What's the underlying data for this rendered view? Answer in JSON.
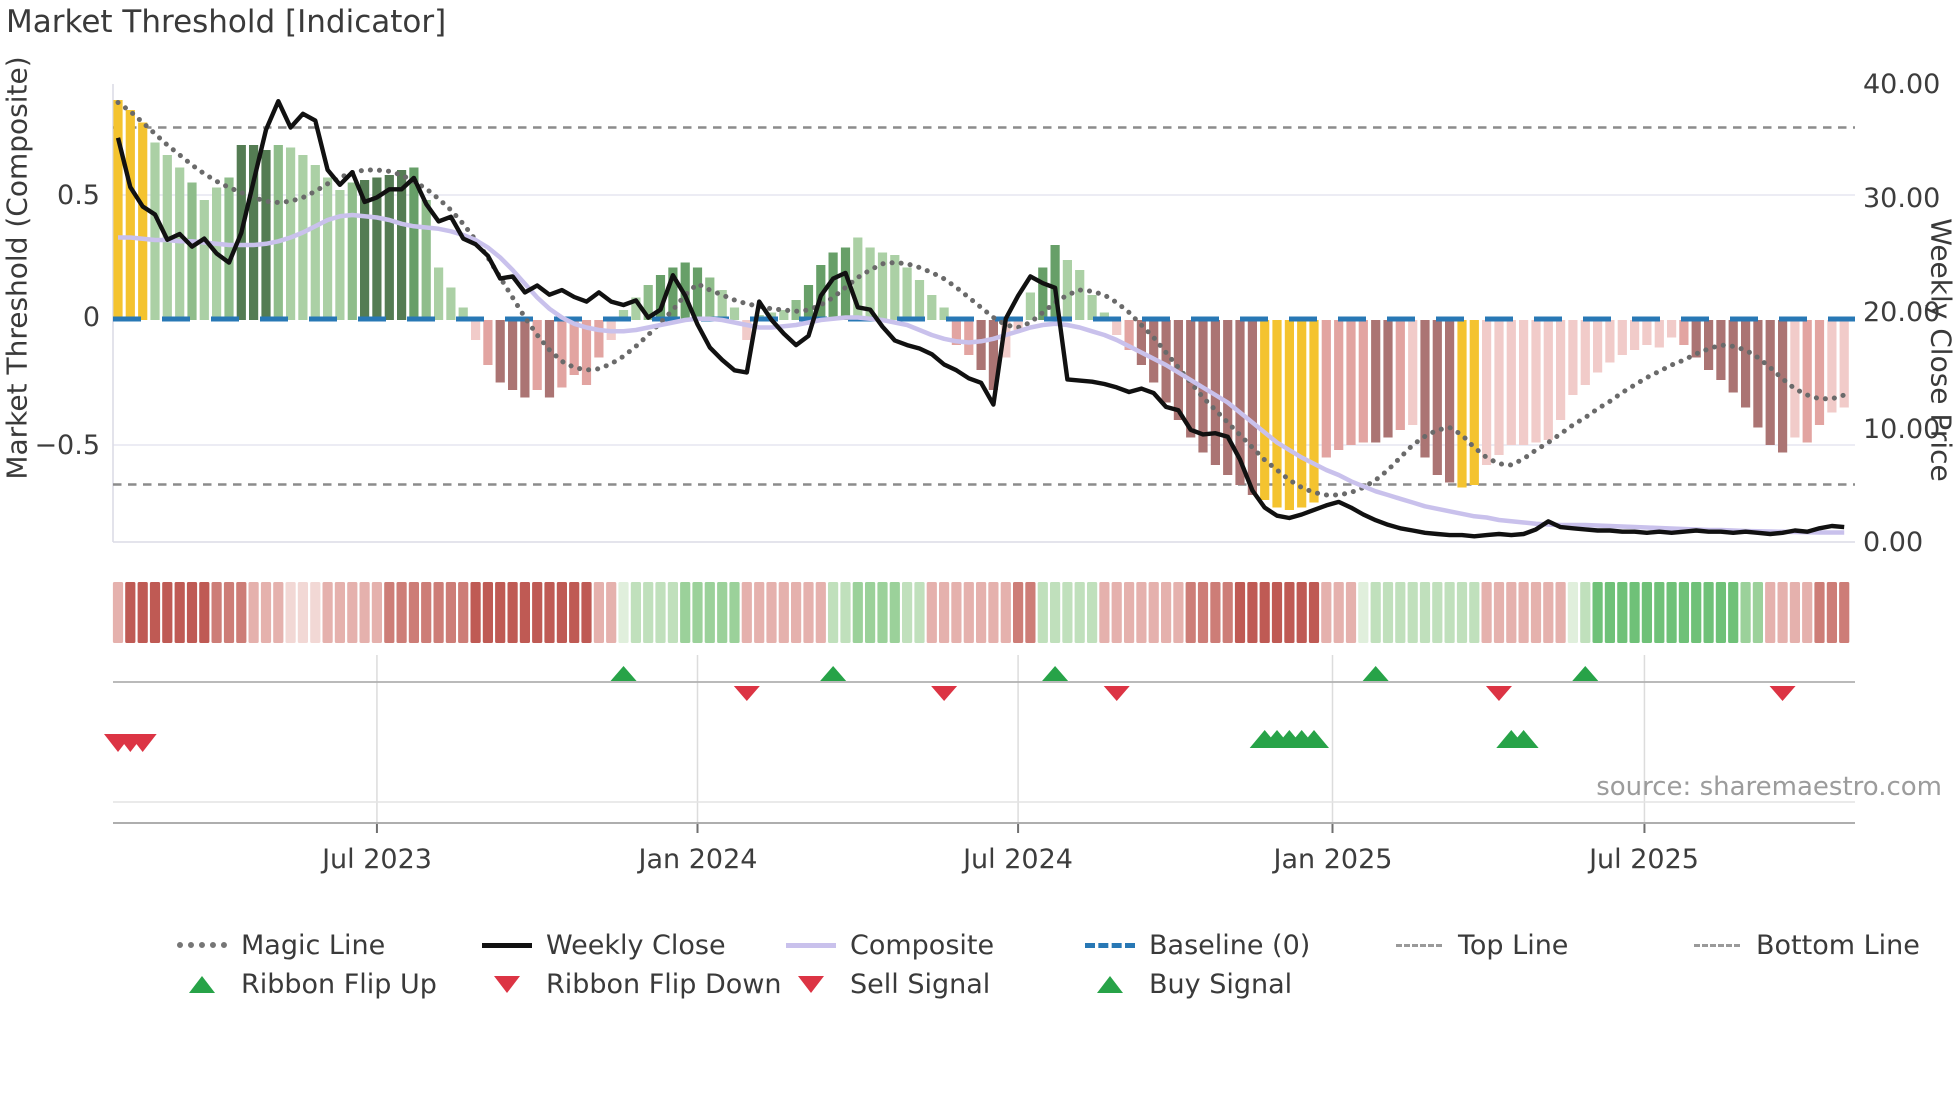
{
  "title": "Market Threshold [Indicator]",
  "source": "source: sharemaestro.com",
  "axes": {
    "left_label": "Market Threshold (Composite)",
    "right_label": "Weekly Close Price",
    "left_tick_labels": [
      "0.5",
      "0",
      "−0.5"
    ],
    "right_tick_labels": [
      "40.00",
      "30.00",
      "20.00",
      "10.00",
      "0.00"
    ],
    "x_tick_labels": [
      "Jul 2023",
      "Jan 2024",
      "Jul 2024",
      "Jan 2025",
      "Jul 2025"
    ]
  },
  "legend": {
    "magic_line": "Magic Line",
    "weekly_close": "Weekly Close",
    "composite": "Composite",
    "baseline": "Baseline (0)",
    "top_line": "Top Line",
    "bottom_line": "Bottom Line",
    "ribbon_flip_up": "Ribbon Flip Up",
    "ribbon_flip_down": "Ribbon Flip Down",
    "sell_signal": "Sell Signal",
    "buy_signal": "Buy Signal"
  },
  "colors": {
    "bars": {
      "au": "#f4c32f",
      "g1": "#abd0a5",
      "g2": "#8fbd8b",
      "g3": "#679f68",
      "g4": "#547c53",
      "p1": "#f1cbc9",
      "p2": "#e2a4a1",
      "p3": "#ab7473"
    },
    "ribbon": {
      "R3": "#bf5a54",
      "R2": "#cd7d77",
      "R1": "#e5b1ad",
      "R0": "#f2d8d5",
      "G0": "#e0efdc",
      "G1": "#c0e0bc",
      "G2": "#9bd19a",
      "G3": "#6fc178"
    },
    "weekly_close": "#111111",
    "composite": "#c9c1ec",
    "magic_line": "#6a6a6a",
    "baseline": "#2878b5",
    "reference": "#8c8c8c",
    "signal_green": "#27a348",
    "signal_red": "#dc3444",
    "grid": "#ececf4"
  },
  "chart_data": {
    "type": "combo",
    "title": "Market Threshold [Indicator]",
    "frequency": "weekly",
    "weeks": 141,
    "x_tick_labels": [
      "Jul 2023",
      "Jan 2024",
      "Jul 2024",
      "Jan 2025",
      "Jul 2025"
    ],
    "x_tick_weeks": [
      21,
      47,
      73,
      98.5,
      123.8
    ],
    "left_axis": {
      "label": "Market Threshold (Composite)",
      "ticks": [
        0.5,
        0,
        -0.5
      ],
      "range": [
        -0.89,
        0.94
      ],
      "grid": true
    },
    "right_axis": {
      "label": "Weekly Close Price",
      "ticks": [
        40,
        30,
        20,
        10,
        0
      ],
      "range": [
        0,
        40.2
      ]
    },
    "reference_lines": {
      "top_line": 0.77,
      "baseline": 0,
      "bottom_line": -0.67
    },
    "bars": {
      "name": "Market Threshold (Composite) histogram",
      "values": [
        0.88,
        0.84,
        0.79,
        0.71,
        0.66,
        0.61,
        0.55,
        0.48,
        0.53,
        0.57,
        0.7,
        0.7,
        0.68,
        0.7,
        0.69,
        0.66,
        0.62,
        0.57,
        0.52,
        0.55,
        0.56,
        0.57,
        0.58,
        0.6,
        0.61,
        0.48,
        0.21,
        0.13,
        0.05,
        -0.08,
        -0.18,
        -0.25,
        -0.28,
        -0.31,
        -0.28,
        -0.31,
        -0.27,
        -0.22,
        -0.26,
        -0.15,
        -0.08,
        0.04,
        0.09,
        0.14,
        0.18,
        0.21,
        0.23,
        0.21,
        0.17,
        0.12,
        0.05,
        -0.08,
        0.02,
        0.03,
        0.04,
        0.08,
        0.14,
        0.22,
        0.27,
        0.29,
        0.33,
        0.29,
        0.27,
        0.26,
        0.21,
        0.16,
        0.1,
        0.05,
        -0.1,
        -0.14,
        -0.2,
        -0.28,
        -0.15,
        -0.04,
        0.11,
        0.21,
        0.3,
        0.24,
        0.2,
        0.1,
        0.03,
        -0.06,
        -0.12,
        -0.18,
        -0.25,
        -0.33,
        -0.4,
        -0.47,
        -0.53,
        -0.58,
        -0.62,
        -0.66,
        -0.7,
        -0.72,
        -0.75,
        -0.76,
        -0.75,
        -0.73,
        -0.55,
        -0.52,
        -0.5,
        -0.49,
        -0.49,
        -0.47,
        -0.44,
        -0.42,
        -0.55,
        -0.62,
        -0.65,
        -0.67,
        -0.66,
        -0.58,
        -0.54,
        -0.5,
        -0.5,
        -0.49,
        -0.48,
        -0.4,
        -0.3,
        -0.26,
        -0.21,
        -0.17,
        -0.14,
        -0.12,
        -0.1,
        -0.11,
        -0.07,
        -0.1,
        -0.15,
        -0.2,
        -0.24,
        -0.29,
        -0.35,
        -0.43,
        -0.5,
        -0.53,
        -0.47,
        -0.49,
        -0.42,
        -0.37,
        -0.35
      ],
      "colors": [
        "au",
        "au",
        "au",
        "g1",
        "g1",
        "g1",
        "g2",
        "g1",
        "g1",
        "g2",
        "g4",
        "g4",
        "g4",
        "g2",
        "g1",
        "g1",
        "g1",
        "g1",
        "g1",
        "g2",
        "g4",
        "g4",
        "g4",
        "g4",
        "g3",
        "g2",
        "g1",
        "g1",
        "g1",
        "p1",
        "p2",
        "p3",
        "p3",
        "p3",
        "p2",
        "p3",
        "p2",
        "p2",
        "p2",
        "p2",
        "p1",
        "g1",
        "g1",
        "g2",
        "g3",
        "g3",
        "g3",
        "g3",
        "g2",
        "g1",
        "g1",
        "p1",
        "g1",
        "g1",
        "g1",
        "g2",
        "g3",
        "g3",
        "g3",
        "g3",
        "g1",
        "g1",
        "g1",
        "g1",
        "g1",
        "g1",
        "g1",
        "g1",
        "p2",
        "p2",
        "p3",
        "p3",
        "p1",
        "p1",
        "g1",
        "g3",
        "g3",
        "g1",
        "g1",
        "g1",
        "g1",
        "p1",
        "p2",
        "p3",
        "p3",
        "p3",
        "p3",
        "p3",
        "p3",
        "p3",
        "p3",
        "p3",
        "p3",
        "au",
        "au",
        "au",
        "au",
        "au",
        "p2",
        "p2",
        "p2",
        "p2",
        "p3",
        "p3",
        "p2",
        "p1",
        "p3",
        "p3",
        "p3",
        "au",
        "au",
        "p1",
        "p1",
        "p1",
        "p1",
        "p1",
        "p1",
        "p1",
        "p1",
        "p1",
        "p1",
        "p1",
        "p1",
        "p1",
        "p1",
        "p1",
        "p1",
        "p2",
        "p3",
        "p3",
        "p3",
        "p3",
        "p3",
        "p3",
        "p3",
        "p3",
        "p1",
        "p2",
        "p2",
        "p1",
        "p1"
      ]
    },
    "weekly_close": [
      35.3,
      31.0,
      29.3,
      28.6,
      26.4,
      26.9,
      25.8,
      26.5,
      25.2,
      24.4,
      27.0,
      31.5,
      36.0,
      38.5,
      36.2,
      37.4,
      36.8,
      32.5,
      31.2,
      32.3,
      29.7,
      30.1,
      30.8,
      30.8,
      31.8,
      29.5,
      28.0,
      28.4,
      26.5,
      26.0,
      25.0,
      23.0,
      23.2,
      21.8,
      22.4,
      21.6,
      22.0,
      21.4,
      21.0,
      21.8,
      21.0,
      20.7,
      21.1,
      19.6,
      20.3,
      23.3,
      21.5,
      19.0,
      17.0,
      15.9,
      15.0,
      14.8,
      21.0,
      19.4,
      18.2,
      17.2,
      18.0,
      21.5,
      23.0,
      23.5,
      20.5,
      20.3,
      18.8,
      17.6,
      17.2,
      16.9,
      16.4,
      15.5,
      15.0,
      14.3,
      13.9,
      12.0,
      19.5,
      21.5,
      23.2,
      22.6,
      22.2,
      14.2,
      14.1,
      14.0,
      13.8,
      13.5,
      13.1,
      13.4,
      13.0,
      11.8,
      11.5,
      9.8,
      9.4,
      9.5,
      9.2,
      7.2,
      4.5,
      3.0,
      2.3,
      2.1,
      2.4,
      2.8,
      3.2,
      3.5,
      3.0,
      2.4,
      1.9,
      1.5,
      1.2,
      1.0,
      0.8,
      0.7,
      0.6,
      0.6,
      0.5,
      0.6,
      0.7,
      0.6,
      0.7,
      1.1,
      1.8,
      1.3,
      1.2,
      1.1,
      1.0,
      1.0,
      0.9,
      0.9,
      0.8,
      0.9,
      0.8,
      0.9,
      1.0,
      0.9,
      0.9,
      0.8,
      0.9,
      0.8,
      0.7,
      0.8,
      1.0,
      0.9,
      1.2,
      1.4,
      1.3
    ],
    "composite": [
      0.33,
      0.33,
      0.325,
      0.32,
      0.32,
      0.315,
      0.315,
      0.31,
      0.305,
      0.3,
      0.3,
      0.3,
      0.305,
      0.315,
      0.33,
      0.35,
      0.375,
      0.4,
      0.415,
      0.42,
      0.415,
      0.41,
      0.4,
      0.385,
      0.375,
      0.37,
      0.365,
      0.355,
      0.34,
      0.32,
      0.29,
      0.25,
      0.2,
      0.145,
      0.09,
      0.045,
      0.01,
      -0.015,
      -0.03,
      -0.04,
      -0.045,
      -0.045,
      -0.04,
      -0.03,
      -0.02,
      -0.01,
      0.0,
      0.005,
      0.005,
      0.0,
      -0.01,
      -0.02,
      -0.03,
      -0.03,
      -0.025,
      -0.02,
      -0.01,
      0.0,
      0.005,
      0.01,
      0.01,
      0.005,
      0.0,
      -0.01,
      -0.02,
      -0.04,
      -0.06,
      -0.075,
      -0.085,
      -0.09,
      -0.085,
      -0.075,
      -0.06,
      -0.045,
      -0.03,
      -0.02,
      -0.015,
      -0.02,
      -0.03,
      -0.045,
      -0.06,
      -0.08,
      -0.105,
      -0.13,
      -0.155,
      -0.18,
      -0.21,
      -0.24,
      -0.27,
      -0.3,
      -0.33,
      -0.37,
      -0.41,
      -0.45,
      -0.49,
      -0.52,
      -0.55,
      -0.575,
      -0.6,
      -0.62,
      -0.645,
      -0.665,
      -0.685,
      -0.7,
      -0.715,
      -0.73,
      -0.745,
      -0.755,
      -0.765,
      -0.775,
      -0.785,
      -0.79,
      -0.8,
      -0.805,
      -0.81,
      -0.815,
      -0.818,
      -0.82,
      -0.82,
      -0.82,
      -0.822,
      -0.824,
      -0.826,
      -0.828,
      -0.83,
      -0.832,
      -0.834,
      -0.836,
      -0.838,
      -0.84,
      -0.84,
      -0.842,
      -0.844,
      -0.845,
      -0.846,
      -0.847,
      -0.848,
      -0.849,
      -0.85,
      -0.85,
      -0.85
    ],
    "magic_line": [
      0.87,
      0.835,
      0.79,
      0.745,
      0.7,
      0.66,
      0.62,
      0.585,
      0.555,
      0.53,
      0.51,
      0.49,
      0.475,
      0.47,
      0.475,
      0.49,
      0.515,
      0.545,
      0.57,
      0.59,
      0.6,
      0.6,
      0.595,
      0.58,
      0.555,
      0.525,
      0.485,
      0.44,
      0.385,
      0.32,
      0.25,
      0.17,
      0.09,
      0.01,
      -0.06,
      -0.12,
      -0.165,
      -0.19,
      -0.2,
      -0.195,
      -0.175,
      -0.145,
      -0.105,
      -0.06,
      -0.01,
      0.04,
      0.1,
      0.145,
      0.12,
      0.1,
      0.08,
      0.065,
      0.055,
      0.045,
      0.04,
      0.035,
      0.04,
      0.06,
      0.09,
      0.13,
      0.17,
      0.2,
      0.225,
      0.23,
      0.225,
      0.21,
      0.19,
      0.165,
      0.13,
      0.09,
      0.05,
      0.01,
      -0.02,
      -0.03,
      -0.01,
      0.03,
      0.07,
      0.1,
      0.12,
      0.115,
      0.1,
      0.07,
      0.03,
      -0.02,
      -0.07,
      -0.13,
      -0.19,
      -0.25,
      -0.31,
      -0.36,
      -0.41,
      -0.46,
      -0.51,
      -0.56,
      -0.6,
      -0.64,
      -0.67,
      -0.69,
      -0.7,
      -0.7,
      -0.69,
      -0.67,
      -0.64,
      -0.6,
      -0.55,
      -0.5,
      -0.465,
      -0.44,
      -0.43,
      -0.46,
      -0.51,
      -0.55,
      -0.575,
      -0.58,
      -0.555,
      -0.52,
      -0.49,
      -0.455,
      -0.42,
      -0.39,
      -0.355,
      -0.325,
      -0.29,
      -0.26,
      -0.23,
      -0.205,
      -0.18,
      -0.16,
      -0.135,
      -0.115,
      -0.1,
      -0.105,
      -0.12,
      -0.15,
      -0.19,
      -0.235,
      -0.275,
      -0.3,
      -0.315,
      -0.315,
      -0.3
    ],
    "ribbon": [
      "R1",
      "R3",
      "R3",
      "R3",
      "R3",
      "R3",
      "R3",
      "R3",
      "R2",
      "R2",
      "R2",
      "R1",
      "R1",
      "R1",
      "R0",
      "R0",
      "R0",
      "R1",
      "R1",
      "R1",
      "R1",
      "R1",
      "R2",
      "R2",
      "R2",
      "R2",
      "R2",
      "R2",
      "R2",
      "R3",
      "R3",
      "R3",
      "R3",
      "R3",
      "R3",
      "R3",
      "R3",
      "R3",
      "R3",
      "R1",
      "R1",
      "G0",
      "G1",
      "G1",
      "G1",
      "G1",
      "G2",
      "G2",
      "G2",
      "G2",
      "G2",
      "R1",
      "R1",
      "R1",
      "R1",
      "R1",
      "R1",
      "R1",
      "G1",
      "G1",
      "G2",
      "G2",
      "G2",
      "G2",
      "G1",
      "G1",
      "R1",
      "R1",
      "R1",
      "R1",
      "R1",
      "R1",
      "R1",
      "R2",
      "R2",
      "G1",
      "G1",
      "G1",
      "G1",
      "G1",
      "R1",
      "R1",
      "R1",
      "R1",
      "R1",
      "R1",
      "R1",
      "R2",
      "R2",
      "R2",
      "R2",
      "R3",
      "R3",
      "R3",
      "R3",
      "R3",
      "R3",
      "R3",
      "R1",
      "R1",
      "R1",
      "G0",
      "G1",
      "G1",
      "G1",
      "G1",
      "G1",
      "G1",
      "G1",
      "G1",
      "G1",
      "R1",
      "R1",
      "R1",
      "R1",
      "R1",
      "R1",
      "R1",
      "G0",
      "G1",
      "G3",
      "G3",
      "G3",
      "G3",
      "G3",
      "G3",
      "G3",
      "G3",
      "G3",
      "G3",
      "G3",
      "G3",
      "G2",
      "G2",
      "R1",
      "R1",
      "R1",
      "R1",
      "R2",
      "R2",
      "R2"
    ],
    "signals": {
      "ribbon_flip_up_weeks": [
        41,
        58,
        76,
        102,
        119
      ],
      "ribbon_flip_down_weeks": [
        51,
        67,
        81,
        112,
        135
      ],
      "sell_signal_weeks": [
        0,
        1,
        2
      ],
      "buy_signal_weeks": [
        93,
        94,
        95,
        96,
        97,
        113,
        114
      ]
    }
  }
}
